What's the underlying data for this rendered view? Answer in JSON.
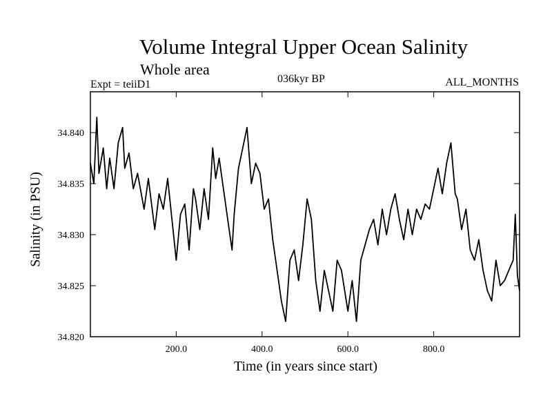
{
  "chart_data": {
    "type": "line",
    "title": "Volume Integral Upper Ocean Salinity",
    "subtitle": "Whole area",
    "experiment": "Expt = teiiD1",
    "period": "036kyr BP",
    "months": "ALL_MONTHS",
    "xlabel": "Time (in years since start)",
    "ylabel": "Salinity (in PSU)",
    "xlim": [
      0,
      1000
    ],
    "ylim": [
      34.82,
      34.844
    ],
    "xticks": [
      200,
      400,
      600,
      800
    ],
    "xtick_labels": [
      "200.0",
      "400.0",
      "600.0",
      "800.0"
    ],
    "yticks": [
      34.82,
      34.825,
      34.83,
      34.835,
      34.84
    ],
    "ytick_labels": [
      "34.820",
      "34.825",
      "34.830",
      "34.835",
      "34.840"
    ],
    "grid": false,
    "series": [
      {
        "color": "#000000",
        "x": [
          0,
          8,
          15,
          20,
          30,
          38,
          45,
          55,
          65,
          75,
          80,
          90,
          100,
          110,
          125,
          135,
          150,
          160,
          170,
          180,
          190,
          200,
          210,
          220,
          230,
          240,
          245,
          255,
          265,
          275,
          285,
          292,
          300,
          310,
          320,
          330,
          335,
          345,
          355,
          365,
          375,
          385,
          395,
          405,
          415,
          425,
          435,
          445,
          455,
          465,
          475,
          485,
          495,
          505,
          515,
          525,
          535,
          545,
          555,
          565,
          575,
          585,
          600,
          610,
          620,
          630,
          640,
          650,
          660,
          670,
          680,
          690,
          700,
          710,
          720,
          730,
          740,
          750,
          760,
          770,
          780,
          790,
          800,
          810,
          820,
          830,
          840,
          845,
          850,
          855,
          865,
          875,
          885,
          895,
          905,
          915,
          925,
          935,
          945,
          955,
          965,
          975,
          985,
          990,
          995,
          1000
        ],
        "y": [
          34.837,
          34.835,
          34.8415,
          34.836,
          34.8385,
          34.8345,
          34.8375,
          34.8345,
          34.839,
          34.8405,
          34.8365,
          34.838,
          34.8345,
          34.836,
          34.8325,
          34.8355,
          34.8305,
          34.834,
          34.8325,
          34.8355,
          34.8315,
          34.8275,
          34.832,
          34.833,
          34.8285,
          34.8345,
          34.8335,
          34.8305,
          34.8345,
          34.8315,
          34.8385,
          34.8355,
          34.8375,
          34.8345,
          34.8315,
          34.8285,
          34.832,
          34.8365,
          34.8385,
          34.8405,
          34.835,
          34.837,
          34.836,
          34.8325,
          34.8335,
          34.8295,
          34.8265,
          34.8235,
          34.8215,
          34.8275,
          34.8285,
          34.8255,
          34.829,
          34.8335,
          34.8315,
          34.8255,
          34.8225,
          34.8265,
          34.8245,
          34.8225,
          34.8275,
          34.8265,
          34.8225,
          34.8255,
          34.8215,
          34.8275,
          34.829,
          34.8305,
          34.8315,
          34.829,
          34.8325,
          34.83,
          34.8325,
          34.834,
          34.8315,
          34.8295,
          34.8325,
          34.83,
          34.8325,
          34.8315,
          34.833,
          34.8325,
          34.8345,
          34.8365,
          34.834,
          34.837,
          34.839,
          34.8365,
          34.834,
          34.8335,
          34.8305,
          34.8325,
          34.8285,
          34.8275,
          34.8295,
          34.8265,
          34.8245,
          34.8235,
          34.8275,
          34.825,
          34.8255,
          34.8265,
          34.8275,
          34.832,
          34.826,
          34.8245
        ]
      }
    ]
  }
}
